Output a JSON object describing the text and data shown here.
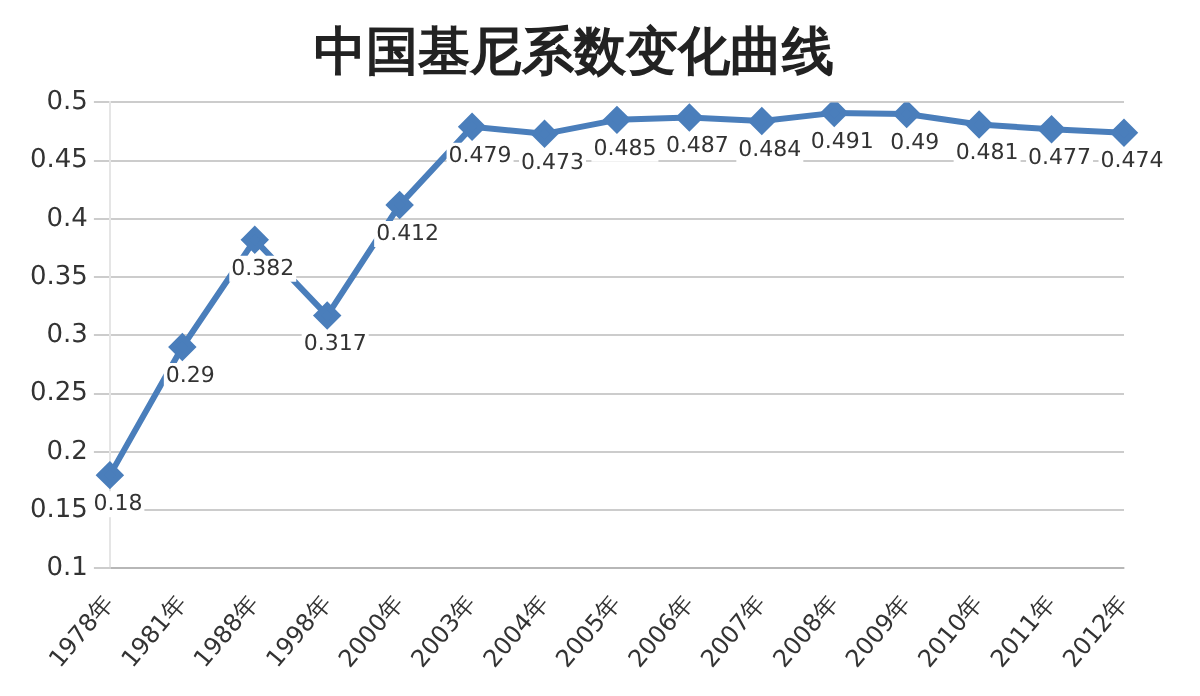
{
  "chart_data": {
    "type": "line",
    "title": "中国基尼系数变化曲线",
    "categories": [
      "1978年",
      "1981年",
      "1988年",
      "1998年",
      "2000年",
      "2003年",
      "2004年",
      "2005年",
      "2006年",
      "2007年",
      "2008年",
      "2009年",
      "2010年",
      "2011年",
      "2012年"
    ],
    "series": [
      {
        "color": "#4a7ebb",
        "values": [
          0.18,
          0.29,
          0.382,
          0.317,
          0.412,
          0.479,
          0.473,
          0.485,
          0.487,
          0.484,
          0.491,
          0.49,
          0.481,
          0.477,
          0.474
        ]
      }
    ],
    "ylim": [
      0.1,
      0.5
    ],
    "yticks": [
      0.1,
      0.15,
      0.2,
      0.25,
      0.3,
      0.35,
      0.4,
      0.45,
      0.5
    ],
    "grid": "y",
    "marker": "diamond",
    "line_style": "solid",
    "data_labels": true,
    "legend": false
  }
}
